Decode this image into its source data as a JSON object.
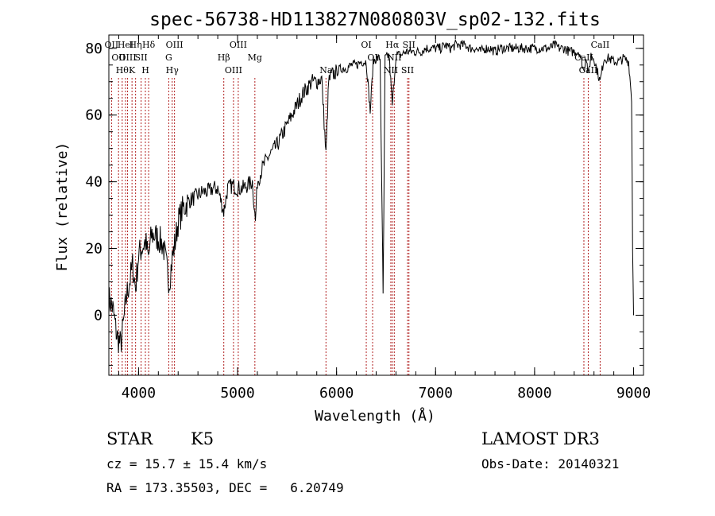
{
  "chart_data": {
    "type": "line",
    "title": "spec-56738-HD113827N080803V_sp02-132.fits",
    "xlabel": "Wavelength (Å)",
    "ylabel": "Flux (relative)",
    "xlim": [
      3700,
      9100
    ],
    "ylim": [
      -18,
      84
    ],
    "xticks": [
      4000,
      5000,
      6000,
      7000,
      8000,
      9000
    ],
    "yticks": [
      0,
      20,
      40,
      60,
      80
    ],
    "series": [
      {
        "name": "flux",
        "points": [
          [
            3700,
            5
          ],
          [
            3740,
            2
          ],
          [
            3780,
            -6
          ],
          [
            3820,
            -9
          ],
          [
            3850,
            -2
          ],
          [
            3880,
            6
          ],
          [
            3910,
            10
          ],
          [
            3940,
            15
          ],
          [
            3970,
            8
          ],
          [
            4000,
            18
          ],
          [
            4030,
            20
          ],
          [
            4070,
            22
          ],
          [
            4100,
            17
          ],
          [
            4130,
            24
          ],
          [
            4160,
            24
          ],
          [
            4200,
            23
          ],
          [
            4250,
            21
          ],
          [
            4280,
            15
          ],
          [
            4310,
            10
          ],
          [
            4340,
            17
          ],
          [
            4370,
            22
          ],
          [
            4400,
            28
          ],
          [
            4450,
            32
          ],
          [
            4500,
            34
          ],
          [
            4550,
            35
          ],
          [
            4600,
            36
          ],
          [
            4650,
            37
          ],
          [
            4700,
            37
          ],
          [
            4750,
            38
          ],
          [
            4800,
            38
          ],
          [
            4860,
            31
          ],
          [
            4900,
            38
          ],
          [
            4950,
            39
          ],
          [
            5000,
            38
          ],
          [
            5050,
            38
          ],
          [
            5100,
            39
          ],
          [
            5150,
            40
          ],
          [
            5180,
            28
          ],
          [
            5200,
            40
          ],
          [
            5250,
            44
          ],
          [
            5300,
            47
          ],
          [
            5350,
            49
          ],
          [
            5400,
            51
          ],
          [
            5450,
            54
          ],
          [
            5500,
            57
          ],
          [
            5550,
            60
          ],
          [
            5600,
            63
          ],
          [
            5650,
            66
          ],
          [
            5700,
            68
          ],
          [
            5750,
            70
          ],
          [
            5800,
            70
          ],
          [
            5850,
            71
          ],
          [
            5893,
            48
          ],
          [
            5920,
            70
          ],
          [
            5950,
            72
          ],
          [
            6000,
            73
          ],
          [
            6050,
            74
          ],
          [
            6100,
            74
          ],
          [
            6150,
            75
          ],
          [
            6200,
            75
          ],
          [
            6250,
            76
          ],
          [
            6300,
            76
          ],
          [
            6340,
            61
          ],
          [
            6370,
            76
          ],
          [
            6400,
            77
          ],
          [
            6440,
            77
          ],
          [
            6470,
            6
          ],
          [
            6490,
            77
          ],
          [
            6530,
            78
          ],
          [
            6563,
            63
          ],
          [
            6600,
            78
          ],
          [
            6650,
            78
          ],
          [
            6700,
            79
          ],
          [
            6750,
            79
          ],
          [
            6800,
            79
          ],
          [
            6850,
            79
          ],
          [
            6900,
            80
          ],
          [
            6950,
            80
          ],
          [
            7000,
            80
          ],
          [
            7050,
            80
          ],
          [
            7100,
            81
          ],
          [
            7150,
            80
          ],
          [
            7200,
            81
          ],
          [
            7250,
            81
          ],
          [
            7300,
            81
          ],
          [
            7350,
            80
          ],
          [
            7400,
            80
          ],
          [
            7450,
            79
          ],
          [
            7500,
            80
          ],
          [
            7550,
            80
          ],
          [
            7600,
            79
          ],
          [
            7650,
            80
          ],
          [
            7700,
            80
          ],
          [
            7750,
            80
          ],
          [
            7800,
            80
          ],
          [
            7850,
            80
          ],
          [
            7900,
            80
          ],
          [
            7950,
            80
          ],
          [
            8000,
            80
          ],
          [
            8050,
            80
          ],
          [
            8100,
            80
          ],
          [
            8150,
            80
          ],
          [
            8200,
            81
          ],
          [
            8250,
            80
          ],
          [
            8300,
            80
          ],
          [
            8350,
            79
          ],
          [
            8400,
            79
          ],
          [
            8450,
            79
          ],
          [
            8498,
            73
          ],
          [
            8520,
            78
          ],
          [
            8542,
            72
          ],
          [
            8570,
            78
          ],
          [
            8600,
            77
          ],
          [
            8662,
            70
          ],
          [
            8700,
            77
          ],
          [
            8750,
            77
          ],
          [
            8800,
            76
          ],
          [
            8850,
            76
          ],
          [
            8900,
            77
          ],
          [
            8950,
            76
          ],
          [
            8980,
            65
          ],
          [
            8990,
            20
          ],
          [
            9000,
            0
          ]
        ]
      }
    ],
    "line_markers": [
      {
        "wavelength": 3727,
        "label": "OII"
      },
      {
        "wavelength": 3798,
        "label": "OII"
      },
      {
        "wavelength": 3835,
        "label": "Hθ"
      },
      {
        "wavelength": 3869,
        "label": "HeI"
      },
      {
        "wavelength": 3889,
        "label": "OIII"
      },
      {
        "wavelength": 3934,
        "label": "K"
      },
      {
        "wavelength": 3970,
        "label": "Hη"
      },
      {
        "wavelength": 4026,
        "label": "SII"
      },
      {
        "wavelength": 4069,
        "label": "H"
      },
      {
        "wavelength": 4102,
        "label": "Hδ"
      },
      {
        "wavelength": 4305,
        "label": "G"
      },
      {
        "wavelength": 4340,
        "label": "Hγ"
      },
      {
        "wavelength": 4363,
        "label": "OIII"
      },
      {
        "wavelength": 4861,
        "label": "Hβ"
      },
      {
        "wavelength": 4959,
        "label": "OIII"
      },
      {
        "wavelength": 5007,
        "label": "OIII"
      },
      {
        "wavelength": 5175,
        "label": "Mg"
      },
      {
        "wavelength": 5893,
        "label": "Na"
      },
      {
        "wavelength": 6300,
        "label": "OI"
      },
      {
        "wavelength": 6364,
        "label": "OI"
      },
      {
        "wavelength": 6548,
        "label": "NII"
      },
      {
        "wavelength": 6563,
        "label": "Hα"
      },
      {
        "wavelength": 6583,
        "label": "NII"
      },
      {
        "wavelength": 6717,
        "label": "SII"
      },
      {
        "wavelength": 6731,
        "label": "SII"
      },
      {
        "wavelength": 8498,
        "label": "CaII"
      },
      {
        "wavelength": 8542,
        "label": "CaII"
      },
      {
        "wavelength": 8662,
        "label": "CaII"
      }
    ]
  },
  "colors": {
    "spectrum": "#000000",
    "markers": "#b22222",
    "axes": "#000000",
    "background": "#ffffff"
  },
  "info": {
    "class_label": "STAR",
    "subclass": "K5",
    "survey": "LAMOST DR3",
    "redshift_line": "cz = 15.7 ± 15.4 km/s",
    "obs_date": "Obs-Date: 20140321",
    "coordinates": "RA = 173.35503, DEC =   6.20749"
  }
}
